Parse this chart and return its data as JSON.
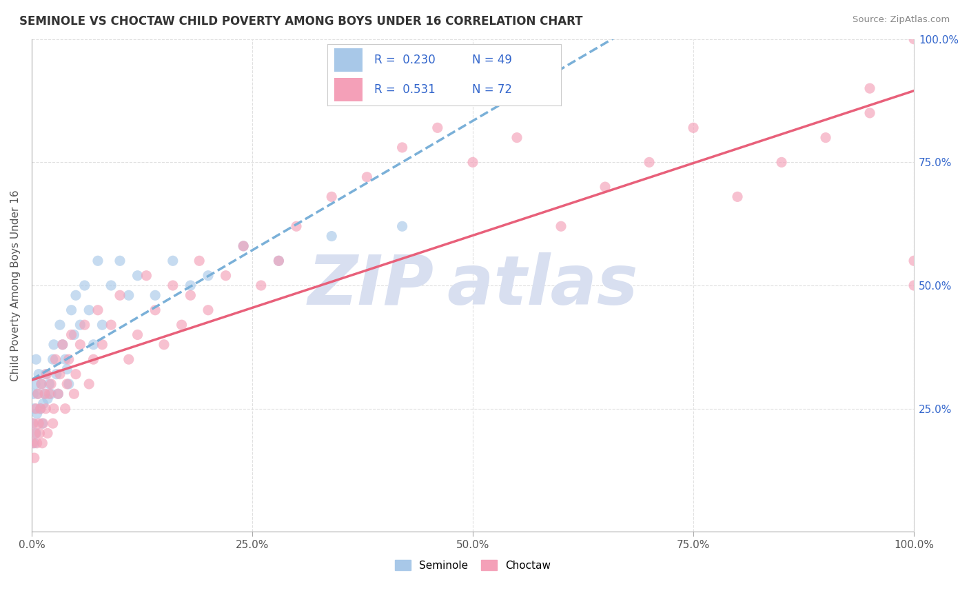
{
  "title": "SEMINOLE VS CHOCTAW CHILD POVERTY AMONG BOYS UNDER 16 CORRELATION CHART",
  "source": "Source: ZipAtlas.com",
  "ylabel": "Child Poverty Among Boys Under 16",
  "seminole_R": 0.23,
  "seminole_N": 49,
  "choctaw_R": 0.531,
  "choctaw_N": 72,
  "seminole_color": "#a8c8e8",
  "choctaw_color": "#f4a0b8",
  "trendline_seminole_color": "#7ab0d8",
  "trendline_choctaw_color": "#e8607a",
  "watermark_color": "#d8dff0",
  "background_color": "#ffffff",
  "grid_color": "#e0e0e0",
  "xlim": [
    0,
    1
  ],
  "ylim": [
    0,
    1
  ],
  "x_ticks": [
    0.0,
    0.25,
    0.5,
    0.75,
    1.0
  ],
  "x_labels": [
    "0.0%",
    "25.0%",
    "50.0%",
    "75.0%",
    "100.0%"
  ],
  "y_ticks": [
    0.0,
    0.25,
    0.5,
    0.75,
    1.0
  ],
  "y_labels": [
    "",
    "25.0%",
    "50.0%",
    "75.0%",
    "100.0%"
  ],
  "seminole_x": [
    0.001,
    0.002,
    0.003,
    0.003,
    0.004,
    0.005,
    0.005,
    0.006,
    0.007,
    0.008,
    0.01,
    0.011,
    0.012,
    0.013,
    0.015,
    0.016,
    0.018,
    0.02,
    0.022,
    0.024,
    0.025,
    0.028,
    0.03,
    0.032,
    0.035,
    0.038,
    0.04,
    0.042,
    0.045,
    0.048,
    0.05,
    0.055,
    0.06,
    0.065,
    0.07,
    0.075,
    0.08,
    0.09,
    0.1,
    0.11,
    0.12,
    0.14,
    0.16,
    0.18,
    0.2,
    0.24,
    0.28,
    0.34,
    0.42
  ],
  "seminole_y": [
    0.22,
    0.28,
    0.18,
    0.25,
    0.3,
    0.2,
    0.35,
    0.24,
    0.28,
    0.32,
    0.25,
    0.3,
    0.22,
    0.26,
    0.28,
    0.32,
    0.27,
    0.3,
    0.28,
    0.35,
    0.38,
    0.32,
    0.28,
    0.42,
    0.38,
    0.35,
    0.33,
    0.3,
    0.45,
    0.4,
    0.48,
    0.42,
    0.5,
    0.45,
    0.38,
    0.55,
    0.42,
    0.5,
    0.55,
    0.48,
    0.52,
    0.48,
    0.55,
    0.5,
    0.52,
    0.58,
    0.55,
    0.6,
    0.62
  ],
  "choctaw_x": [
    0.001,
    0.002,
    0.003,
    0.004,
    0.005,
    0.006,
    0.007,
    0.008,
    0.009,
    0.01,
    0.011,
    0.012,
    0.013,
    0.015,
    0.016,
    0.017,
    0.018,
    0.02,
    0.022,
    0.024,
    0.025,
    0.027,
    0.03,
    0.032,
    0.035,
    0.038,
    0.04,
    0.042,
    0.045,
    0.048,
    0.05,
    0.055,
    0.06,
    0.065,
    0.07,
    0.075,
    0.08,
    0.09,
    0.1,
    0.11,
    0.12,
    0.13,
    0.14,
    0.15,
    0.16,
    0.17,
    0.18,
    0.19,
    0.2,
    0.22,
    0.24,
    0.26,
    0.28,
    0.3,
    0.34,
    0.38,
    0.42,
    0.46,
    0.5,
    0.55,
    0.6,
    0.65,
    0.7,
    0.75,
    0.8,
    0.85,
    0.9,
    0.95,
    0.95,
    1.0,
    1.0,
    1.0
  ],
  "choctaw_y": [
    0.18,
    0.22,
    0.15,
    0.2,
    0.25,
    0.18,
    0.28,
    0.22,
    0.2,
    0.25,
    0.3,
    0.18,
    0.22,
    0.28,
    0.25,
    0.32,
    0.2,
    0.28,
    0.3,
    0.22,
    0.25,
    0.35,
    0.28,
    0.32,
    0.38,
    0.25,
    0.3,
    0.35,
    0.4,
    0.28,
    0.32,
    0.38,
    0.42,
    0.3,
    0.35,
    0.45,
    0.38,
    0.42,
    0.48,
    0.35,
    0.4,
    0.52,
    0.45,
    0.38,
    0.5,
    0.42,
    0.48,
    0.55,
    0.45,
    0.52,
    0.58,
    0.5,
    0.55,
    0.62,
    0.68,
    0.72,
    0.78,
    0.82,
    0.75,
    0.8,
    0.62,
    0.7,
    0.75,
    0.82,
    0.68,
    0.75,
    0.8,
    0.85,
    0.9,
    0.5,
    0.55,
    1.0
  ]
}
